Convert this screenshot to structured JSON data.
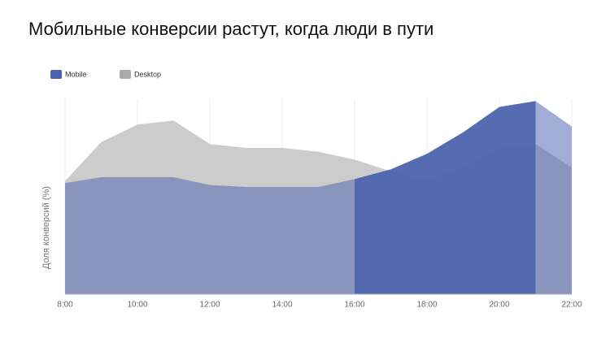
{
  "chart_data": {
    "type": "area",
    "title": "Мобильные конверсии растут, когда люди в пути",
    "y_label": "Доля конверсий (%)",
    "categories": [
      "8:00",
      null,
      "10:00",
      null,
      "12:00",
      null,
      "14:00",
      null,
      "16:00",
      null,
      "18:00",
      null,
      "20:00",
      null,
      "22:00"
    ],
    "series": [
      {
        "name": "Mobile",
        "color": "#4a62ad",
        "values": [
          57,
          60,
          60,
          60,
          56,
          55,
          55,
          55,
          59,
          64,
          72,
          83,
          96,
          99,
          86
        ]
      },
      {
        "name": "Desktop",
        "color": "#aaaaaa",
        "values": [
          58,
          78,
          87,
          89,
          77,
          75,
          75,
          73,
          69,
          63,
          58,
          65,
          75,
          77,
          65
        ]
      }
    ],
    "ylim": [
      0,
      100
    ],
    "highlight_range": [
      8,
      13
    ],
    "legend": "top-left"
  }
}
